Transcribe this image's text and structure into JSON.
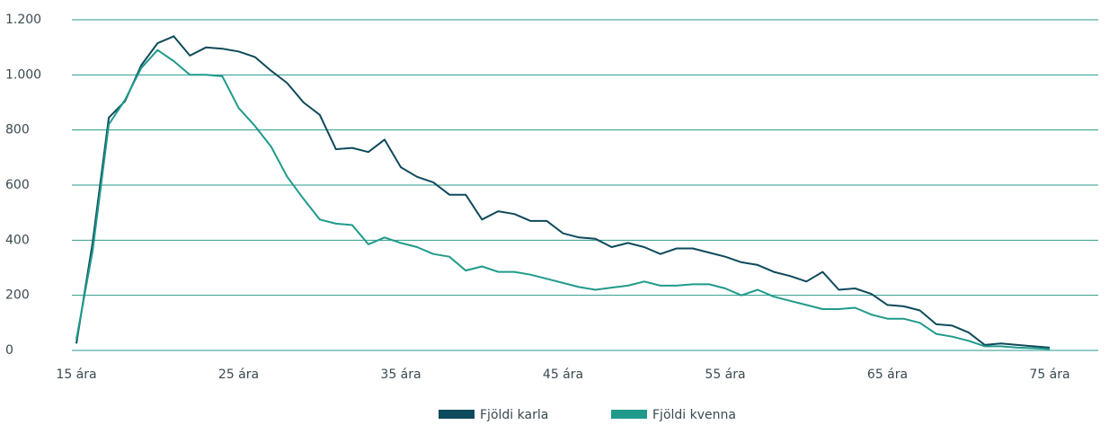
{
  "chart_data": {
    "type": "line",
    "categories": [
      "15 ára",
      null,
      null,
      null,
      null,
      null,
      null,
      null,
      null,
      null,
      "25 ára",
      null,
      null,
      null,
      null,
      null,
      null,
      null,
      null,
      null,
      "35 ára",
      null,
      null,
      null,
      null,
      null,
      null,
      null,
      null,
      null,
      "45 ára",
      null,
      null,
      null,
      null,
      null,
      null,
      null,
      null,
      null,
      "55 ára",
      null,
      null,
      null,
      null,
      null,
      null,
      null,
      null,
      null,
      "65 ára",
      null,
      null,
      null,
      null,
      null,
      null,
      null,
      null,
      null,
      "75 ára"
    ],
    "series": [
      {
        "name": "Fjöldi karla",
        "color": "#0e4a5b",
        "values": [
          25,
          390,
          845,
          905,
          1035,
          1115,
          1140,
          1070,
          1100,
          1095,
          1085,
          1065,
          1015,
          970,
          900,
          855,
          730,
          735,
          720,
          765,
          665,
          630,
          610,
          565,
          565,
          475,
          505,
          495,
          470,
          470,
          425,
          410,
          405,
          375,
          390,
          375,
          350,
          370,
          370,
          355,
          340,
          320,
          310,
          285,
          270,
          250,
          285,
          220,
          225,
          205,
          165,
          160,
          145,
          95,
          90,
          65,
          20,
          25,
          20,
          15,
          10
        ]
      },
      {
        "name": "Fjöldi kvenna",
        "color": "#1f9a8b",
        "values": [
          40,
          360,
          820,
          910,
          1025,
          1090,
          1050,
          1000,
          1000,
          995,
          880,
          815,
          740,
          630,
          550,
          475,
          460,
          455,
          385,
          410,
          390,
          375,
          350,
          340,
          290,
          305,
          285,
          285,
          275,
          260,
          245,
          230,
          220,
          228,
          235,
          250,
          235,
          235,
          240,
          240,
          225,
          200,
          220,
          195,
          180,
          165,
          150,
          150,
          155,
          130,
          115,
          115,
          100,
          60,
          50,
          35,
          15,
          15,
          10,
          8,
          5
        ]
      }
    ],
    "ylim": [
      0,
      1200
    ],
    "yticks": [
      0,
      200,
      400,
      600,
      800,
      {
        "value": 1000,
        "label": "1.000"
      },
      {
        "value": 1200,
        "label": "1.200"
      }
    ],
    "grid": true,
    "legend": "bottom"
  }
}
